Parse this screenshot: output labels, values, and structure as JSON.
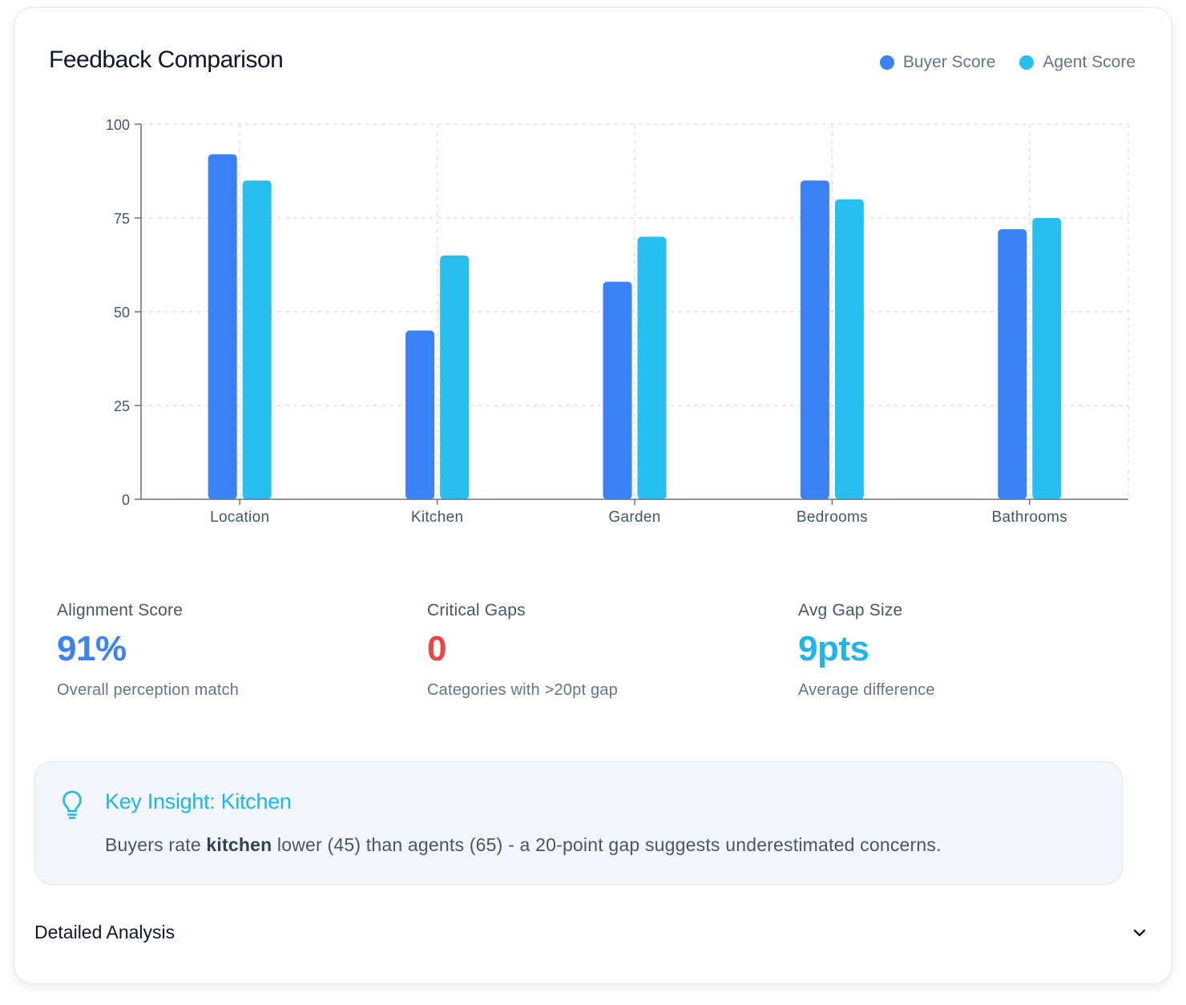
{
  "header": {
    "title": "Feedback Comparison",
    "legend": [
      {
        "label": "Buyer Score",
        "color": "#3b82f6"
      },
      {
        "label": "Agent Score",
        "color": "#27bff0"
      }
    ]
  },
  "chart_data": {
    "type": "bar",
    "title": "Feedback Comparison",
    "categories": [
      "Location",
      "Kitchen",
      "Garden",
      "Bedrooms",
      "Bathrooms"
    ],
    "series": [
      {
        "name": "Buyer Score",
        "color": "#3b82f6",
        "values": [
          92,
          45,
          58,
          85,
          72
        ]
      },
      {
        "name": "Agent Score",
        "color": "#27bff0",
        "values": [
          85,
          65,
          70,
          80,
          75
        ]
      }
    ],
    "ylim": [
      0,
      100
    ],
    "yticks": [
      0,
      25,
      50,
      75,
      100
    ],
    "xlabel": "",
    "ylabel": "",
    "grid": true,
    "legend_position": "top-right"
  },
  "stats": [
    {
      "label": "Alignment Score",
      "value": "91%",
      "sub": "Overall perception match",
      "color": "#3b82f6",
      "bg": "#f3f7fd"
    },
    {
      "label": "Critical Gaps",
      "value": "0",
      "sub": "Categories with >20pt gap",
      "color": "#ef4444",
      "bg": "#fef5f4"
    },
    {
      "label": "Avg Gap Size",
      "value": "9pts",
      "sub": "Average difference",
      "color": "#1fb5ea",
      "bg": "#f4f8fc"
    }
  ],
  "insight": {
    "title": "Key Insight: Kitchen",
    "text_before": "Buyers rate ",
    "text_bold": "kitchen",
    "text_after": " lower (45) than agents (65) - a 20-point gap suggests underestimated concerns.",
    "icon": "lightbulb-icon"
  },
  "analysis": {
    "title": "Detailed Analysis",
    "icon": "chevron-down-icon"
  }
}
